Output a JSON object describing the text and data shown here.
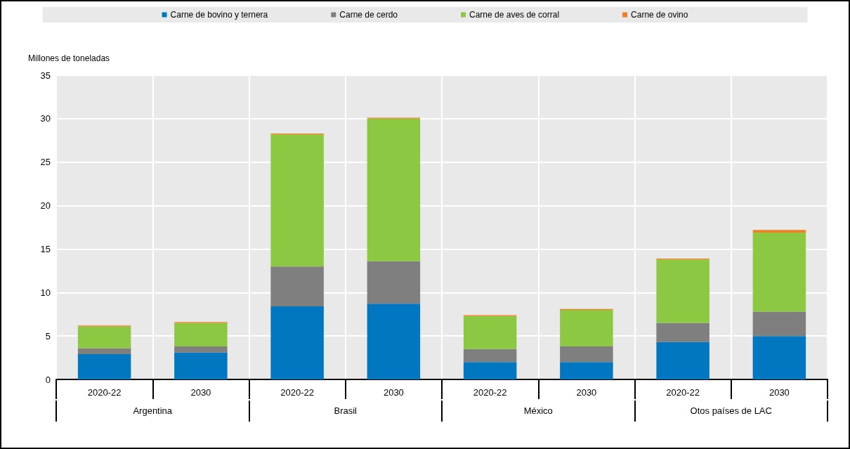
{
  "chart_data": {
    "type": "bar",
    "stacked": true,
    "ylabel": "Millones de toneladas",
    "categories": [
      "2020-22",
      "2030",
      "2020-22",
      "2030",
      "2020-22",
      "2030",
      "2020-22",
      "2030"
    ],
    "annotations": [
      "Argentina",
      "Brasil",
      "México",
      "Otos países de LAC"
    ],
    "series": [
      {
        "name": "Carne de bovino y ternera",
        "color": "#0077c0",
        "values": [
          2.9,
          3.1,
          8.4,
          8.7,
          2.0,
          2.0,
          4.3,
          5.0
        ]
      },
      {
        "name": "Carne de cerdo",
        "color": "#7f7f7f",
        "values": [
          0.7,
          0.7,
          4.6,
          4.9,
          1.5,
          1.8,
          2.2,
          2.8
        ]
      },
      {
        "name": "Carne de aves de corral",
        "color": "#8cc841",
        "values": [
          2.5,
          2.7,
          15.2,
          16.4,
          3.8,
          4.2,
          7.3,
          9.1
        ]
      },
      {
        "name": "Carne de ovino",
        "color": "#f47d20",
        "values": [
          0.1,
          0.1,
          0.1,
          0.1,
          0.1,
          0.1,
          0.1,
          0.3
        ]
      }
    ],
    "ylim": [
      0,
      35
    ],
    "yticks": [
      0,
      5,
      10,
      15,
      20,
      25,
      30,
      35
    ],
    "grid": true,
    "legend": "top"
  }
}
